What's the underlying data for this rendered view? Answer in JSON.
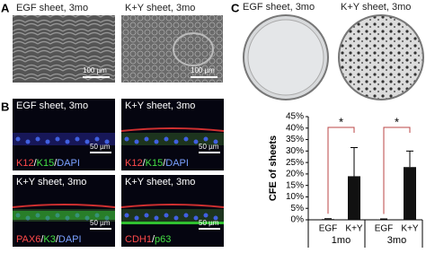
{
  "panels": {
    "a": {
      "label": "A",
      "left_title": "EGF sheet, 3mo",
      "right_title": "K+Y sheet, 3mo",
      "scale": "100 µm"
    },
    "b": {
      "label": "B",
      "images": [
        {
          "title": "EGF sheet, 3mo",
          "scale": "50 µm",
          "stain": [
            {
              "text": "K12",
              "color": "#ff4a4a"
            },
            {
              "text": "/",
              "color": "#ffffff"
            },
            {
              "text": "K15",
              "color": "#44e044"
            },
            {
              "text": "/",
              "color": "#ffffff"
            },
            {
              "text": "DAPI",
              "color": "#7aa0ff"
            }
          ]
        },
        {
          "title": "K+Y sheet, 3mo",
          "scale": "50 µm",
          "stain": [
            {
              "text": "K12",
              "color": "#ff4a4a"
            },
            {
              "text": "/",
              "color": "#ffffff"
            },
            {
              "text": "K15",
              "color": "#44e044"
            },
            {
              "text": "/",
              "color": "#ffffff"
            },
            {
              "text": "DAPI",
              "color": "#7aa0ff"
            }
          ]
        },
        {
          "title": "K+Y sheet, 3mo",
          "scale": "50 µm",
          "stain": [
            {
              "text": "PAX6",
              "color": "#ff4a4a"
            },
            {
              "text": "/",
              "color": "#ffffff"
            },
            {
              "text": "K3",
              "color": "#44e044"
            },
            {
              "text": "/",
              "color": "#ffffff"
            },
            {
              "text": "DAPI",
              "color": "#7aa0ff"
            }
          ]
        },
        {
          "title": "K+Y sheet, 3mo",
          "scale": "50 µm",
          "stain": [
            {
              "text": "CDH1",
              "color": "#ff4a4a"
            },
            {
              "text": "/",
              "color": "#ffffff"
            },
            {
              "text": "p63",
              "color": "#44e044"
            }
          ]
        }
      ]
    },
    "c": {
      "label": "C",
      "left_title": "EGF sheet, 3mo",
      "right_title": "K+Y sheet, 3mo"
    }
  },
  "chart_data": {
    "type": "bar",
    "y_label": "CFE of sheets",
    "categories": [
      "EGF",
      "K+Y",
      "EGF",
      "K+Y"
    ],
    "groups": [
      "1mo",
      "3mo"
    ],
    "values": [
      0.3,
      19,
      0.2,
      23
    ],
    "errors": [
      0.2,
      12.5,
      0.2,
      7
    ],
    "color": "#111111",
    "significance": [
      "*",
      "*"
    ],
    "ylim": [
      0,
      45
    ],
    "yticks": [
      {
        "value": 0,
        "label": "0%"
      },
      {
        "value": 5,
        "label": "5%"
      },
      {
        "value": 10,
        "label": "10%"
      },
      {
        "value": 15,
        "label": "15%"
      },
      {
        "value": 20,
        "label": "20%"
      },
      {
        "value": 25,
        "label": "25%"
      },
      {
        "value": 30,
        "label": "30%"
      },
      {
        "value": 35,
        "label": "35%"
      },
      {
        "value": 40,
        "label": "40%"
      },
      {
        "value": 45,
        "label": "45%"
      }
    ]
  }
}
